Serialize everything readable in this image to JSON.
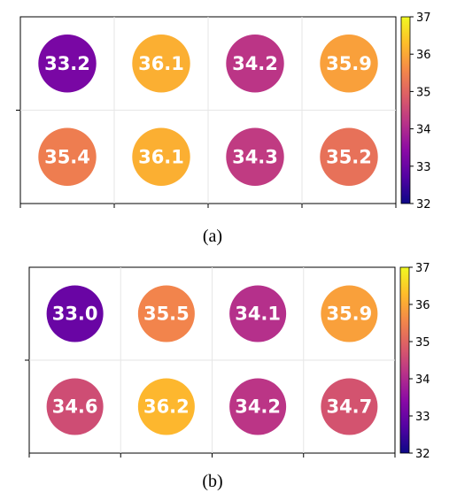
{
  "colormap": {
    "name": "plasma",
    "stops": [
      "#0d0887",
      "#5302a3",
      "#8b0aa5",
      "#b83289",
      "#db5c68",
      "#f48849",
      "#febd2a",
      "#f0f921"
    ]
  },
  "chart_data": [
    {
      "type": "heatmap",
      "caption": "(a)",
      "title": "",
      "xlabel": "",
      "ylabel": "",
      "rows": 2,
      "cols": 4,
      "values": [
        [
          33.2,
          36.1,
          34.2,
          35.9
        ],
        [
          35.4,
          36.1,
          34.3,
          35.2
        ]
      ],
      "labels": [
        [
          "33.2",
          "36.1",
          "34.2",
          "35.9"
        ],
        [
          "35.4",
          "36.1",
          "34.3",
          "35.2"
        ]
      ],
      "colorbar": {
        "range": [
          32,
          37
        ],
        "ticks": [
          "32",
          "33",
          "34",
          "35",
          "36",
          "37"
        ]
      },
      "grid": true
    },
    {
      "type": "heatmap",
      "caption": "(b)",
      "title": "",
      "xlabel": "",
      "ylabel": "",
      "rows": 2,
      "cols": 4,
      "values": [
        [
          33.0,
          35.5,
          34.1,
          35.9
        ],
        [
          34.6,
          36.2,
          34.2,
          34.7
        ]
      ],
      "labels": [
        [
          "33.0",
          "35.5",
          "34.1",
          "35.9"
        ],
        [
          "34.6",
          "36.2",
          "34.2",
          "34.7"
        ]
      ],
      "colorbar": {
        "range": [
          32,
          37
        ],
        "ticks": [
          "32",
          "33",
          "34",
          "35",
          "36",
          "37"
        ]
      },
      "grid": true
    }
  ]
}
